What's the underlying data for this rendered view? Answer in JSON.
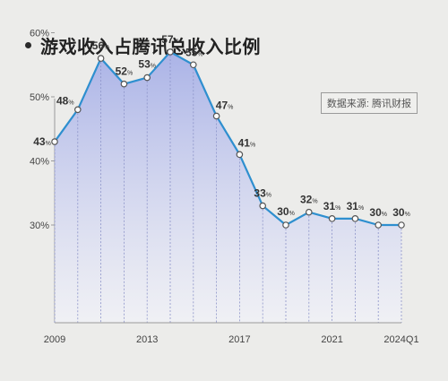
{
  "title": "游戏收入占腾讯总收入比例",
  "source": "数据来源: 腾讯财报",
  "colors": {
    "line": "#2e8fcf",
    "area_top": "#9fa9e6",
    "area_bottom": "#f2f3fb",
    "text": "#333333",
    "background": "#ececea"
  },
  "chart_data": {
    "type": "area",
    "title": "游戏收入占腾讯总收入比例",
    "xlabel": "",
    "ylabel": "",
    "ylim": [
      25,
      61
    ],
    "y_ticks": [
      {
        "value": 60,
        "label": "60%"
      },
      {
        "value": 50,
        "label": "50%"
      },
      {
        "value": 40,
        "label": "40%"
      },
      {
        "value": 30,
        "label": "30%"
      }
    ],
    "x_tick_labels": [
      {
        "index": 0,
        "label": "2009"
      },
      {
        "index": 4,
        "label": "2013"
      },
      {
        "index": 8,
        "label": "2017"
      },
      {
        "index": 12,
        "label": "2021"
      },
      {
        "index": 15,
        "label": "2024Q1"
      }
    ],
    "grid": "vertical",
    "legend": "none",
    "categories": [
      "2009",
      "2010",
      "2011",
      "2012",
      "2013",
      "2014",
      "2015",
      "2016",
      "2017",
      "2018",
      "2019",
      "2020",
      "2021",
      "2022",
      "2023",
      "2024Q1"
    ],
    "values": [
      43,
      48,
      56,
      52,
      53,
      57,
      55,
      47,
      41,
      33,
      30,
      32,
      31,
      31,
      30,
      30
    ],
    "data_labels": [
      {
        "num": "43",
        "unit": "%"
      },
      {
        "num": "48",
        "unit": "%"
      },
      {
        "num": "56",
        "unit": "%"
      },
      {
        "num": "52",
        "unit": "%"
      },
      {
        "num": "53",
        "unit": "%"
      },
      {
        "num": "57",
        "unit": "%"
      },
      {
        "num": "55",
        "unit": "%"
      },
      {
        "num": "47",
        "unit": "%"
      },
      {
        "num": "41",
        "unit": "%"
      },
      {
        "num": "33",
        "unit": "%"
      },
      {
        "num": "30",
        "unit": "%"
      },
      {
        "num": "32",
        "unit": "%"
      },
      {
        "num": "31",
        "unit": "%"
      },
      {
        "num": "31",
        "unit": "%"
      },
      {
        "num": "30",
        "unit": "%"
      },
      {
        "num": "30",
        "unit": "%"
      }
    ]
  }
}
